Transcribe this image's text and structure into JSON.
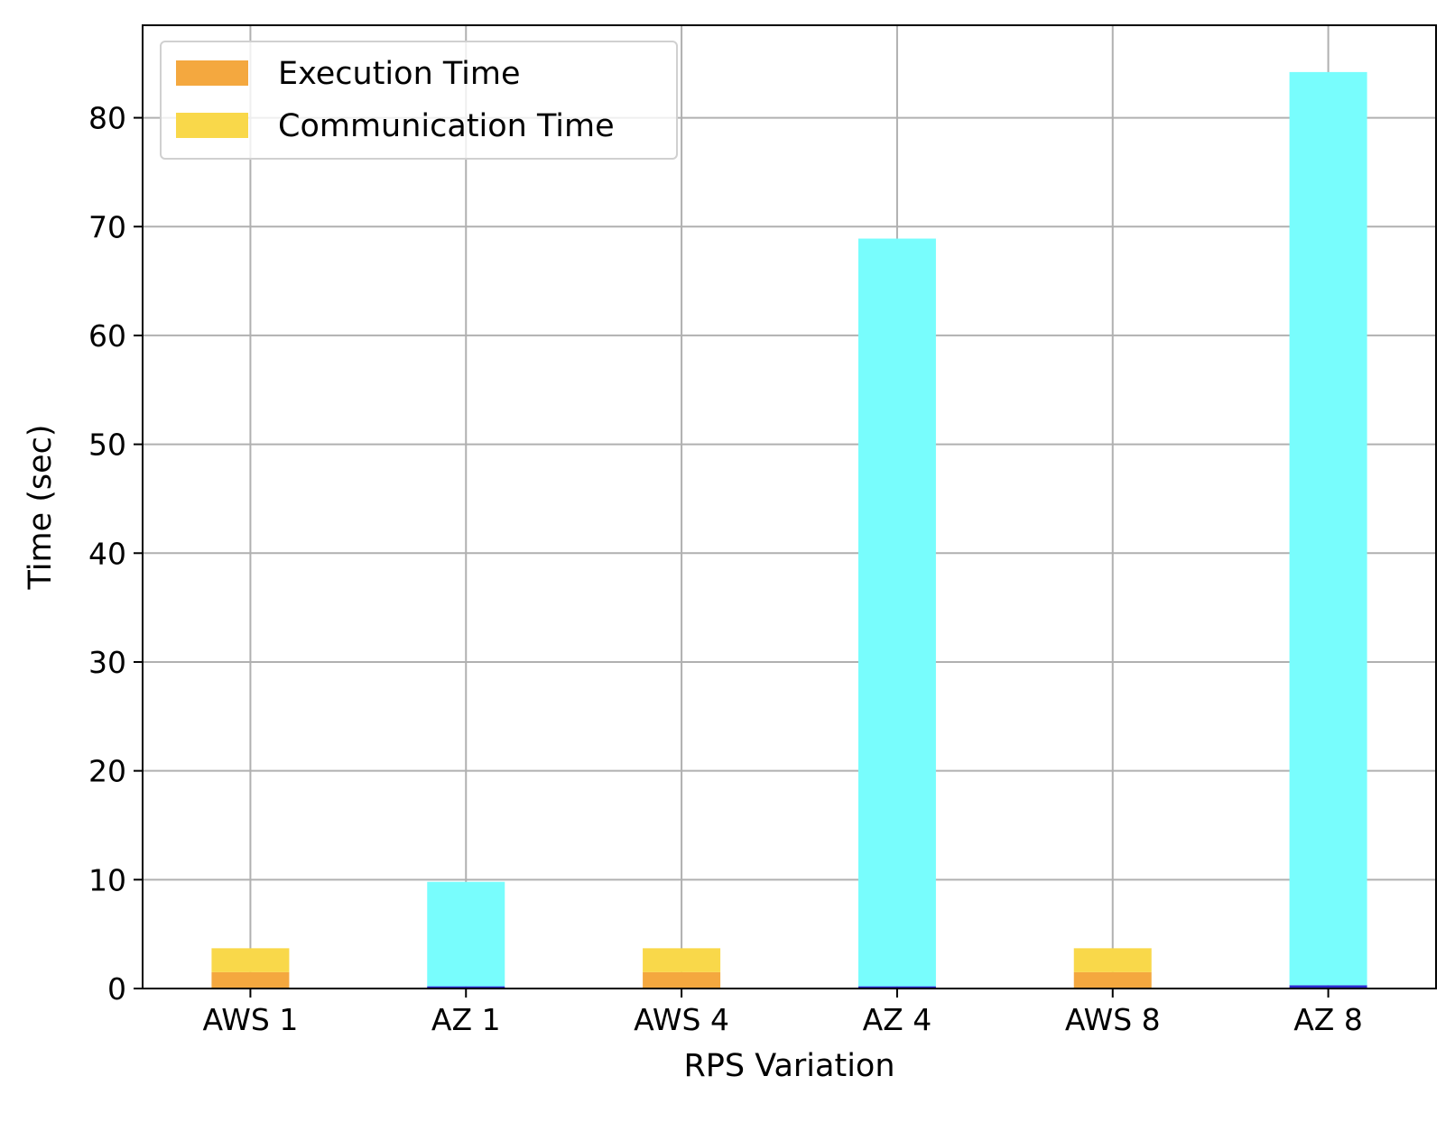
{
  "chart_data": {
    "type": "bar",
    "stacked": true,
    "title": "",
    "xlabel": "RPS Variation",
    "ylabel": "Time (sec)",
    "ylim": [
      0,
      88.5
    ],
    "yticks": [
      0,
      10,
      20,
      30,
      40,
      50,
      60,
      70,
      80
    ],
    "categories": [
      "AWS 1",
      "AZ 1",
      "AWS 4",
      "AZ 4",
      "AWS 8",
      "AZ 8"
    ],
    "grid": true,
    "legend_position": "top-left",
    "legend": [
      {
        "label": "Execution Time",
        "color": "#f4a83f"
      },
      {
        "label": "Communication Time",
        "color": "#f9d84a"
      }
    ],
    "bars": [
      {
        "category": "AWS 1",
        "execution": 1.5,
        "communication": 2.2,
        "exec_color": "#f4a83f",
        "comm_color": "#f9d84a"
      },
      {
        "category": "AZ 1",
        "execution": 0.2,
        "communication": 9.6,
        "exec_color": "#2b2bd0",
        "comm_color": "#78fdfd"
      },
      {
        "category": "AWS 4",
        "execution": 1.5,
        "communication": 2.2,
        "exec_color": "#f4a83f",
        "comm_color": "#f9d84a"
      },
      {
        "category": "AZ 4",
        "execution": 0.2,
        "communication": 68.7,
        "exec_color": "#2b2bd0",
        "comm_color": "#78fdfd"
      },
      {
        "category": "AWS 8",
        "execution": 1.5,
        "communication": 2.2,
        "exec_color": "#f4a83f",
        "comm_color": "#f9d84a"
      },
      {
        "category": "AZ 8",
        "execution": 0.3,
        "communication": 83.9,
        "exec_color": "#2b2bd0",
        "comm_color": "#78fdfd"
      }
    ]
  }
}
